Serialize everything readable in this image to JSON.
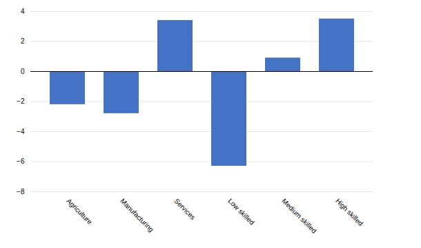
{
  "chart_data": {
    "type": "bar",
    "categories": [
      "Agriculture",
      "Manufacturing",
      "Services",
      "Low skilled",
      "Medium skilled",
      "High skilled"
    ],
    "values": [
      -2.2,
      -2.8,
      3.4,
      -6.3,
      0.9,
      3.5
    ],
    "color": "#4472C4",
    "ylim": [
      -8,
      4
    ],
    "yticks": [
      -8,
      -6,
      -4,
      -2,
      0,
      2,
      4
    ],
    "grid": true
  }
}
